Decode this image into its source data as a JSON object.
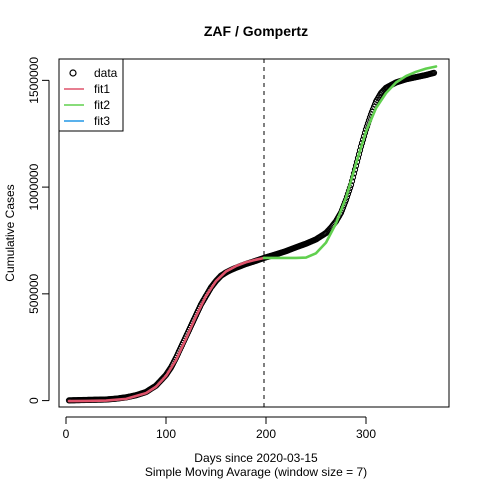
{
  "chart_data": {
    "type": "line",
    "title": "ZAF / Gompertz",
    "xlabel": "Days since 2020-03-15",
    "xlabel2": "Simple Moving Avarage (window size = 7)",
    "ylabel": "Cumulative Cases",
    "xlim": [
      -7,
      383
    ],
    "ylim": [
      -30000,
      1600000
    ],
    "x_ticks": [
      0,
      100,
      200,
      300
    ],
    "x_tick_labels": [
      "0",
      "100",
      "200",
      "300"
    ],
    "y_ticks": [
      0,
      500000,
      1000000,
      1500000
    ],
    "y_tick_labels": [
      "0",
      "500000",
      "1000000",
      "1500000"
    ],
    "vline_x": 198,
    "legend": {
      "position": "top-left",
      "entries": [
        "data",
        "fit1",
        "fit2",
        "fit3"
      ]
    },
    "colors": {
      "data": "#000000",
      "fit1": "#DF536B",
      "fit2": "#61D04F",
      "fit3": "#2297E6"
    },
    "series": [
      {
        "name": "data",
        "style": "points",
        "points": [
          [
            3,
            1000
          ],
          [
            20,
            3000
          ],
          [
            40,
            5000
          ],
          [
            50,
            9000
          ],
          [
            60,
            15000
          ],
          [
            70,
            25000
          ],
          [
            80,
            40000
          ],
          [
            90,
            70000
          ],
          [
            100,
            120000
          ],
          [
            105,
            155000
          ],
          [
            110,
            200000
          ],
          [
            115,
            250000
          ],
          [
            120,
            300000
          ],
          [
            125,
            350000
          ],
          [
            130,
            400000
          ],
          [
            135,
            450000
          ],
          [
            140,
            490000
          ],
          [
            145,
            530000
          ],
          [
            150,
            560000
          ],
          [
            155,
            585000
          ],
          [
            160,
            600000
          ],
          [
            165,
            612000
          ],
          [
            170,
            622000
          ],
          [
            180,
            640000
          ],
          [
            190,
            655000
          ],
          [
            198,
            668000
          ],
          [
            210,
            685000
          ],
          [
            220,
            700000
          ],
          [
            230,
            718000
          ],
          [
            240,
            735000
          ],
          [
            250,
            755000
          ],
          [
            260,
            785000
          ],
          [
            265,
            810000
          ],
          [
            270,
            840000
          ],
          [
            275,
            880000
          ],
          [
            280,
            940000
          ],
          [
            285,
            1010000
          ],
          [
            290,
            1100000
          ],
          [
            295,
            1190000
          ],
          [
            300,
            1270000
          ],
          [
            305,
            1340000
          ],
          [
            310,
            1400000
          ],
          [
            315,
            1440000
          ],
          [
            320,
            1465000
          ],
          [
            330,
            1490000
          ],
          [
            340,
            1505000
          ],
          [
            350,
            1515000
          ],
          [
            360,
            1525000
          ],
          [
            368,
            1535000
          ]
        ]
      },
      {
        "name": "fit1",
        "style": "line",
        "points": [
          [
            3,
            -2000
          ],
          [
            20,
            -1500
          ],
          [
            40,
            0
          ],
          [
            60,
            8000
          ],
          [
            80,
            35000
          ],
          [
            90,
            65000
          ],
          [
            100,
            115000
          ],
          [
            110,
            190000
          ],
          [
            120,
            290000
          ],
          [
            130,
            395000
          ],
          [
            140,
            490000
          ],
          [
            150,
            560000
          ],
          [
            160,
            605000
          ],
          [
            170,
            630000
          ],
          [
            180,
            648000
          ],
          [
            190,
            660000
          ],
          [
            198,
            668000
          ]
        ]
      },
      {
        "name": "fit2",
        "style": "line",
        "points": [
          [
            198,
            668000
          ],
          [
            210,
            668000
          ],
          [
            220,
            668000
          ],
          [
            230,
            668000
          ],
          [
            240,
            670000
          ],
          [
            250,
            690000
          ],
          [
            260,
            740000
          ],
          [
            270,
            830000
          ],
          [
            280,
            950000
          ],
          [
            290,
            1110000
          ],
          [
            300,
            1260000
          ],
          [
            310,
            1370000
          ],
          [
            320,
            1440000
          ],
          [
            330,
            1490000
          ],
          [
            340,
            1520000
          ],
          [
            350,
            1540000
          ],
          [
            360,
            1555000
          ],
          [
            370,
            1565000
          ]
        ]
      },
      {
        "name": "fit3",
        "style": "line",
        "points": []
      }
    ]
  }
}
